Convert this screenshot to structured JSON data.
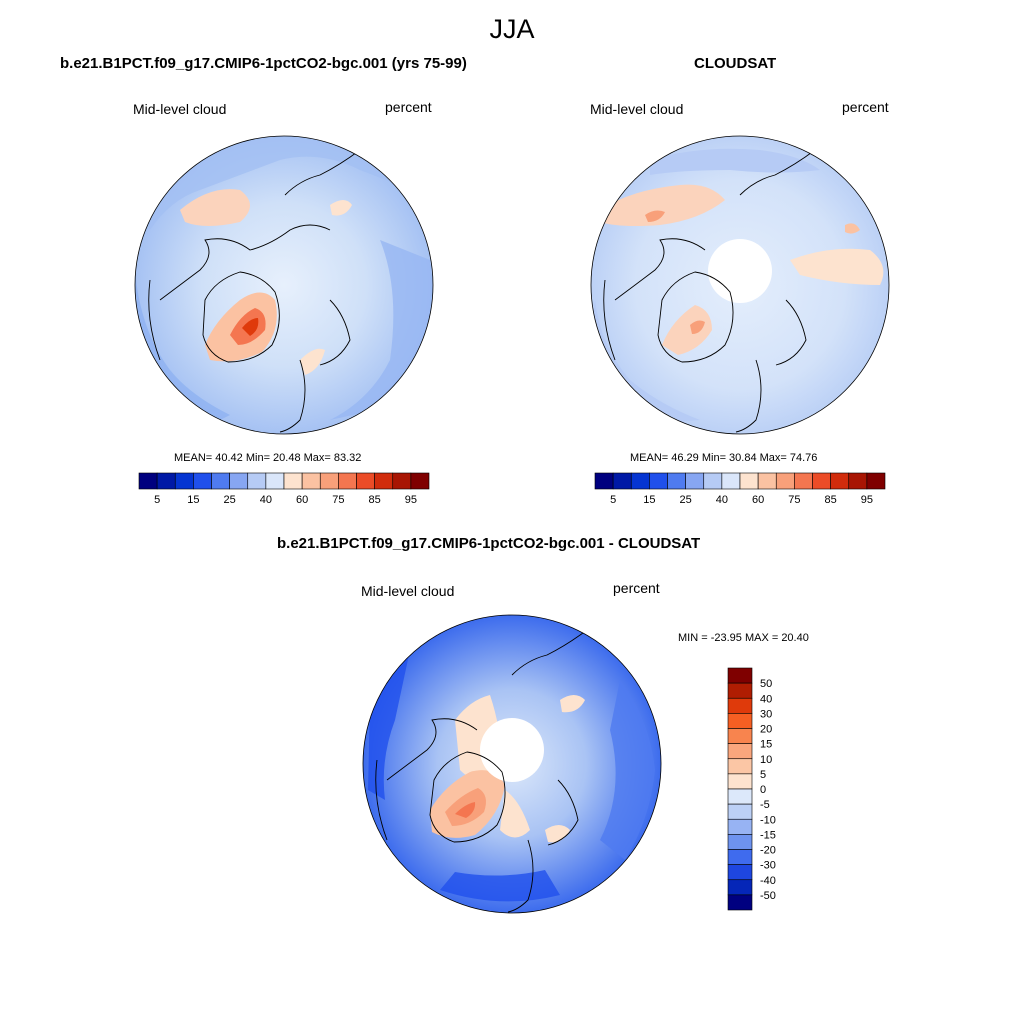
{
  "figure_title": "JJA",
  "panels": [
    {
      "title": "b.e21.B1PCT.f09_g17.CMIP6-1pctCO2-bgc.001 (yrs 75-99)",
      "variable": "Mid-level cloud",
      "units": "percent",
      "stats": "MEAN=  40.42  Min=  20.48  Max=  83.32"
    },
    {
      "title": "CLOUDSAT",
      "variable": "Mid-level cloud",
      "units": "percent",
      "stats": "MEAN=  46.29  Min=  30.84  Max=  74.76"
    },
    {
      "title": "b.e21.B1PCT.f09_g17.CMIP6-1pctCO2-bgc.001 - CLOUDSAT",
      "variable": "Mid-level cloud",
      "units": "percent",
      "stats": "MIN = -23.95 MAX =  20.40"
    }
  ],
  "colorbars": {
    "absolute": {
      "labels": [
        "5",
        "15",
        "25",
        "40",
        "60",
        "75",
        "85",
        "95"
      ],
      "colors": [
        "#00007f",
        "#0019a6",
        "#0535d2",
        "#2050ec",
        "#4f7bf0",
        "#87a6f2",
        "#b6cbf5",
        "#dae6fa",
        "#fde3cf",
        "#fbc2a2",
        "#f8a07a",
        "#f47650",
        "#ec4c27",
        "#d12c0c",
        "#a81503",
        "#7f0000"
      ]
    },
    "difference": {
      "labels": [
        "50",
        "40",
        "30",
        "20",
        "15",
        "10",
        "5",
        "0",
        "-5",
        "-10",
        "-15",
        "-20",
        "-30",
        "-40",
        "-50"
      ],
      "colors": [
        "#7f0000",
        "#b01d02",
        "#df3a0b",
        "#f65f23",
        "#f8844e",
        "#faa67d",
        "#fbc6a5",
        "#fde3cf",
        "#dce8fa",
        "#bcd0f6",
        "#97b3f3",
        "#6e93ef",
        "#3f6bee",
        "#1e46e0",
        "#0526b8",
        "#000080"
      ]
    }
  }
}
